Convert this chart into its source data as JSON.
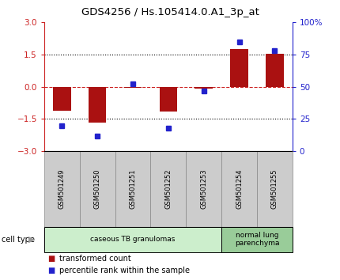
{
  "title": "GDS4256 / Hs.105414.0.A1_3p_at",
  "samples": [
    "GSM501249",
    "GSM501250",
    "GSM501251",
    "GSM501252",
    "GSM501253",
    "GSM501254",
    "GSM501255"
  ],
  "transformed_counts": [
    -1.1,
    -1.65,
    -0.05,
    -1.15,
    -0.08,
    1.75,
    1.55
  ],
  "percentile_ranks": [
    20,
    12,
    52,
    18,
    47,
    85,
    78
  ],
  "ylim_left": [
    -3,
    3
  ],
  "yticks_left": [
    -3,
    -1.5,
    0,
    1.5,
    3
  ],
  "yticks_right": [
    0,
    25,
    50,
    75,
    100
  ],
  "ylim_right": [
    0,
    100
  ],
  "bar_color": "#aa1111",
  "dot_color": "#2222cc",
  "dotted_line_color": "#333333",
  "dashed_line_color": "#cc2222",
  "cell_type_groups": [
    {
      "label": "caseous TB granulomas",
      "start": 0,
      "end": 4,
      "color": "#cceecc"
    },
    {
      "label": "normal lung\nparenchyma",
      "start": 5,
      "end": 6,
      "color": "#99cc99"
    }
  ],
  "legend_items": [
    {
      "color": "#aa1111",
      "label": "transformed count"
    },
    {
      "color": "#2222cc",
      "label": "percentile rank within the sample"
    }
  ],
  "bg_color": "#ffffff",
  "cell_type_label": "cell type",
  "bar_width": 0.5,
  "sample_box_color": "#cccccc",
  "sample_box_edge": "#888888"
}
